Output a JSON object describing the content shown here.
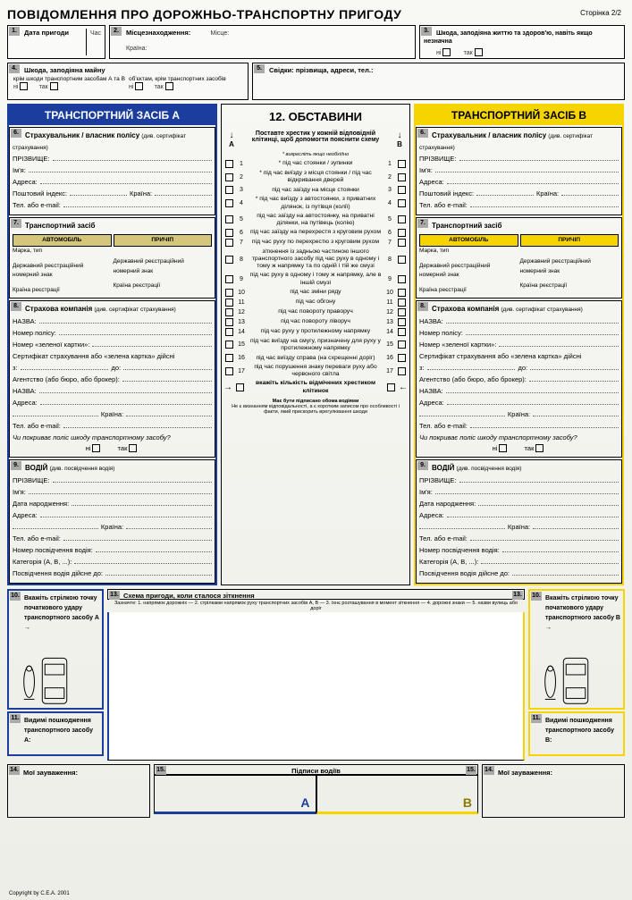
{
  "title": "ПОВІДОМЛЕННЯ ПРО ДОРОЖНЬО-ТРАНСПОРТНУ ПРИГОДУ",
  "page_label": "Сторінка 2/2",
  "top": {
    "b1": {
      "num": "1.",
      "label": "Дата пригоди",
      "time": "Час"
    },
    "b2": {
      "num": "2.",
      "label": "Місцезнаходження:",
      "place": "Місце:",
      "country": "Країна:"
    },
    "b3": {
      "num": "3.",
      "label": "Шкода, заподіяна життю та здоров'ю, навіть якщо незначна",
      "no": "ні",
      "yes": "так"
    },
    "b4": {
      "num": "4.",
      "label": "Шкода, заподіяна майну",
      "sub1": "крім шкоди транспортним засобам А та В",
      "sub2": "об'єктам, крім транспортних засобів",
      "no": "ні",
      "yes": "так"
    },
    "b5": {
      "num": "5.",
      "label": "Свідки: прізвища, адреси, тел.:"
    }
  },
  "headers": {
    "a": "ТРАНСПОРТНИЙ ЗАСІБ А",
    "b": "ТРАНСПОРТНИЙ ЗАСІБ В",
    "c": "12. ОБСТАВИНИ"
  },
  "s6": {
    "num": "6.",
    "title": "Страхувальник / власник полісу",
    "note": "(див. сертифікат страхування)",
    "surname": "ПРІЗВИЩЕ:",
    "name": "Ім'я:",
    "addr": "Адреса:",
    "zip": "Поштовий індекс:",
    "country": "Країна:",
    "tel": "Тел. або e-mail:"
  },
  "s7": {
    "num": "7.",
    "title": "Транспортний засіб",
    "auto": "АВТОМОБІЛЬ",
    "trailer": "ПРИЧІП",
    "make": "Марка, тип",
    "reg": "Державний реєстраційний номерний знак",
    "regcountry": "Країна реєстрації"
  },
  "s8": {
    "num": "8.",
    "title": "Страхова компанія",
    "note": "(див. сертифікат страхування)",
    "name": "НАЗВА:",
    "policy": "Номер полісу:",
    "green": "Номер «зеленої картки»:",
    "cert": "Сертифікат страхування або «зелена картка» дійсні",
    "from": "з:",
    "to": "до:",
    "agency": "Агентство (або бюро, або брокер):",
    "aname": "НАЗВА:",
    "aaddr": "Адреса:",
    "acountry": "Країна:",
    "atel": "Тел. або e-mail:",
    "cover": "Чи покриває поліс шкоду транспортному засобу?",
    "no": "ні",
    "yes": "так"
  },
  "s9": {
    "num": "9.",
    "title": "ВОДІЙ",
    "note": "(див. посвідчення водія)",
    "surname": "ПРІЗВИЩЕ:",
    "name": "Ім'я:",
    "dob": "Дата народження:",
    "addr": "Адреса:",
    "country": "Країна:",
    "tel": "Тел. або e-mail:",
    "lic": "Номер посвідчення водія:",
    "cat": "Категорія (А, В, ...):",
    "valid": "Посвідчення водія дійсне до:"
  },
  "s10": {
    "num": "10.",
    "titleA": "Вкажіть стрілкою точку початкового удару транспортного засобу А →",
    "titleB": "Вкажіть стрілкою точку початкового удару транспортного засобу В →"
  },
  "s11": {
    "num": "11.",
    "titleA": "Видимі пошкодження транспортного засобу А:",
    "titleB": "Видимі пошкодження транспортного засобу В:"
  },
  "s14": {
    "num": "14.",
    "title": "Мої зауваження:"
  },
  "circ": {
    "instr": "Поставте хрестик у кожній відповідній клітинці, щоб допомогти пояснити схему",
    "star": "* викресліть якщо необхідно",
    "items": [
      {
        "n": "1",
        "t": "* під час стоянки / зупинки"
      },
      {
        "n": "2",
        "t": "* під час виїзду з місця стоянки / під час відкривання дверей"
      },
      {
        "n": "3",
        "t": "під час заїзду на місце стоянки"
      },
      {
        "n": "4",
        "t": "* під час виїзду з автостоянки, з приватних ділянок, із путівця (колії)"
      },
      {
        "n": "5",
        "t": "під час заїзду на автостоянку, на приватні ділянки, на путівець (колію)"
      },
      {
        "n": "6",
        "t": "під час заїзду на перехрестя з круговим рухом"
      },
      {
        "n": "7",
        "t": "під час руху по перехрестю з круговим рухом"
      },
      {
        "n": "8",
        "t": "зіткнення із задньою частиною іншого транспортного засобу під час руху в одному і тому ж напрямку та по одній і тій же смузі"
      },
      {
        "n": "9",
        "t": "під час руху в одному і тому ж напрямку, але в іншій смузі"
      },
      {
        "n": "10",
        "t": "під час зміни ряду"
      },
      {
        "n": "11",
        "t": "під час обгону"
      },
      {
        "n": "12",
        "t": "під час повороту праворуч"
      },
      {
        "n": "13",
        "t": "під час повороту ліворуч"
      },
      {
        "n": "14",
        "t": "під час руху у протилежному напрямку"
      },
      {
        "n": "15",
        "t": "під час виїзду на смугу, призначену для руху у протилежному напрямку"
      },
      {
        "n": "16",
        "t": "під час виїзду справа (на схрещенні доріг)"
      },
      {
        "n": "17",
        "t": "під час порушення знаку переваги руху або червоного світла"
      }
    ],
    "count": "вкажіть кількість відмічених хрестиком клітинок",
    "sign": "Має бути підписано обома водіями",
    "sign2": "Не є визнанням відповідальності, а є коротким записом про особливості і факти, який прискорить врегулювання шкоди"
  },
  "s13": {
    "num": "13.",
    "title": "Схема пригоди, коли сталося зіткнення",
    "note": "Зазначте: 1. напрямок дорожніх — 2. стрілками напрямок руху транспортних засобів А, В — 3. їхнє розташування в момент зіткнення — 4. дорожні знаки — 5. назви вулиць або доріг"
  },
  "s15": {
    "num": "15.",
    "title": "Підписи водіїв",
    "a": "А",
    "b": "В"
  },
  "copyright": "Copyright by C.E.A. 2001",
  "colors": {
    "blue": "#1a3d9e",
    "yellow": "#f5d400",
    "gray": "#aaaaaa"
  }
}
